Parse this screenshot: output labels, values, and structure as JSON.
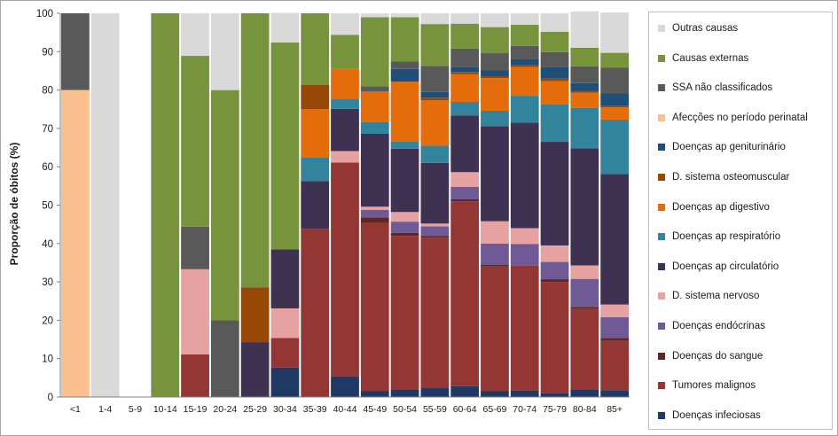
{
  "chart_data": {
    "type": "bar",
    "stacked": true,
    "ylabel": "Proporção de óbitos (%)",
    "xlabel": "",
    "ylim": [
      0,
      100
    ],
    "yticks": [
      0,
      10,
      20,
      30,
      40,
      50,
      60,
      70,
      80,
      90,
      100
    ],
    "grid": false,
    "legend_position": "right",
    "categories": [
      "<1",
      "1-4",
      "5-9",
      "10-14",
      "15-19",
      "20-24",
      "25-29",
      "30-34",
      "35-39",
      "40-44",
      "45-49",
      "50-54",
      "55-59",
      "60-64",
      "65-69",
      "70-74",
      "75-79",
      "80-84",
      "85+"
    ],
    "series": [
      {
        "name": "Doenças infeciosas",
        "color": "#1f3864",
        "values": [
          0,
          0,
          0,
          0,
          0,
          0,
          0,
          7.7,
          0,
          5.4,
          1.5,
          2.0,
          2.5,
          2.8,
          1.5,
          1.7,
          1.0,
          2.0,
          1.8
        ]
      },
      {
        "name": "Tumores malignos",
        "color": "#943634",
        "values": [
          0,
          0,
          0,
          0,
          11.1,
          0,
          0,
          7.7,
          43.8,
          55.7,
          44.0,
          40.0,
          39.0,
          48.2,
          32.5,
          32.5,
          29.0,
          21.0,
          12.8
        ]
      },
      {
        "name": "Doenças do sangue",
        "color": "#632523",
        "values": [
          0,
          0,
          0,
          0,
          0,
          0,
          0,
          0,
          0,
          0,
          1.3,
          0.8,
          0.5,
          0.5,
          0.5,
          0,
          0.7,
          0.5,
          0.8
        ]
      },
      {
        "name": "Doenças endócrinas",
        "color": "#6f5a96",
        "values": [
          0,
          0,
          0,
          0,
          0,
          0,
          0,
          0,
          0,
          0,
          2.0,
          2.9,
          2.5,
          3.3,
          5.5,
          5.7,
          4.5,
          7.3,
          5.4
        ]
      },
      {
        "name": "D. sistema nervoso",
        "color": "#e6a1a1",
        "values": [
          0,
          0,
          0,
          0,
          22.2,
          0,
          0,
          7.7,
          0,
          3.0,
          0.8,
          2.5,
          0.7,
          3.8,
          5.8,
          4.1,
          4.3,
          3.5,
          3.3
        ]
      },
      {
        "name": "Doenças ap circulatório",
        "color": "#3f3152",
        "values": [
          0,
          0,
          0,
          0,
          0,
          0,
          14.3,
          15.4,
          12.5,
          11.0,
          19.0,
          16.5,
          15.8,
          14.8,
          24.8,
          27.5,
          27.0,
          30.5,
          34.0
        ]
      },
      {
        "name": "Doenças ap respiratório",
        "color": "#31849b",
        "values": [
          0,
          0,
          0,
          0,
          0,
          0,
          0,
          0,
          6.2,
          2.5,
          3.0,
          2.0,
          4.5,
          3.5,
          4.0,
          7.0,
          9.8,
          10.5,
          14.2
        ]
      },
      {
        "name": "Doenças ap digestivo",
        "color": "#e46c0a",
        "values": [
          0,
          0,
          0,
          0,
          0,
          0,
          0,
          0,
          12.5,
          8.0,
          8.0,
          15.5,
          11.8,
          7.2,
          8.5,
          7.5,
          6.0,
          4.0,
          3.2
        ]
      },
      {
        "name": "D. sistema osteomuscular",
        "color": "#974706",
        "values": [
          0,
          0,
          0,
          0,
          0,
          0,
          14.3,
          0,
          6.3,
          0,
          0,
          0,
          0.7,
          0.6,
          0.5,
          0.6,
          0.7,
          0.5,
          0.4
        ]
      },
      {
        "name": "Doenças ap geniturinário",
        "color": "#1f4e79",
        "values": [
          0,
          0,
          0,
          0,
          0,
          0,
          0,
          0,
          0,
          0,
          0,
          3.3,
          1.5,
          1.3,
          1.5,
          1.4,
          3.0,
          2.0,
          3.3
        ]
      },
      {
        "name": "Afecções no período perinatal",
        "color": "#fac090",
        "values": [
          80.0,
          0,
          0,
          0,
          0,
          0,
          0,
          0,
          0,
          0,
          0,
          0,
          0,
          0,
          0,
          0,
          0,
          0,
          0
        ]
      },
      {
        "name": "SSA não classificados",
        "color": "#595959",
        "values": [
          20.0,
          0,
          0,
          0,
          11.1,
          20.0,
          0,
          0,
          0,
          0,
          1.4,
          2.0,
          6.8,
          4.8,
          4.5,
          3.5,
          3.9,
          4.4,
          6.6
        ]
      },
      {
        "name": "Causas externas",
        "color": "#77933c",
        "values": [
          0,
          0,
          0,
          100.0,
          44.5,
          60.0,
          71.4,
          53.9,
          18.7,
          8.8,
          18.0,
          11.5,
          10.9,
          6.5,
          6.8,
          5.5,
          5.3,
          4.8,
          3.9
        ]
      },
      {
        "name": "Outras causas",
        "color": "#d9d9d9",
        "values": [
          0,
          100.0,
          0,
          0,
          11.1,
          20.0,
          0,
          7.7,
          0,
          5.6,
          1.0,
          1.0,
          2.8,
          2.7,
          3.6,
          3.0,
          4.8,
          9.5,
          10.5
        ]
      }
    ]
  }
}
